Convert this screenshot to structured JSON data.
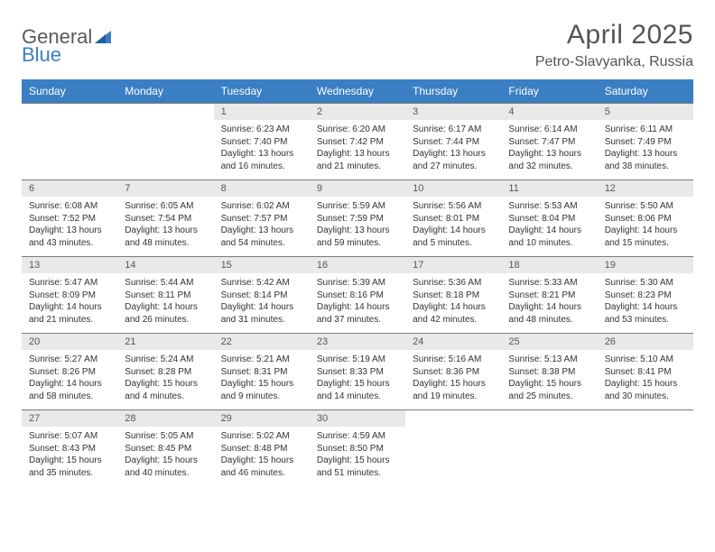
{
  "logo": {
    "general": "General",
    "blue": "Blue"
  },
  "title": "April 2025",
  "location": "Petro-Slavyanka, Russia",
  "colors": {
    "header_bg": "#3a7fc4",
    "header_fg": "#ffffff",
    "daynum_bg": "#e9e9e9",
    "rule": "#7a7a7a",
    "text": "#333333",
    "muted": "#555555"
  },
  "columns": [
    "Sunday",
    "Monday",
    "Tuesday",
    "Wednesday",
    "Thursday",
    "Friday",
    "Saturday"
  ],
  "weeks": [
    [
      null,
      null,
      {
        "n": "1",
        "sr": "6:23 AM",
        "ss": "7:40 PM",
        "dl": "13 hours and 16 minutes."
      },
      {
        "n": "2",
        "sr": "6:20 AM",
        "ss": "7:42 PM",
        "dl": "13 hours and 21 minutes."
      },
      {
        "n": "3",
        "sr": "6:17 AM",
        "ss": "7:44 PM",
        "dl": "13 hours and 27 minutes."
      },
      {
        "n": "4",
        "sr": "6:14 AM",
        "ss": "7:47 PM",
        "dl": "13 hours and 32 minutes."
      },
      {
        "n": "5",
        "sr": "6:11 AM",
        "ss": "7:49 PM",
        "dl": "13 hours and 38 minutes."
      }
    ],
    [
      {
        "n": "6",
        "sr": "6:08 AM",
        "ss": "7:52 PM",
        "dl": "13 hours and 43 minutes."
      },
      {
        "n": "7",
        "sr": "6:05 AM",
        "ss": "7:54 PM",
        "dl": "13 hours and 48 minutes."
      },
      {
        "n": "8",
        "sr": "6:02 AM",
        "ss": "7:57 PM",
        "dl": "13 hours and 54 minutes."
      },
      {
        "n": "9",
        "sr": "5:59 AM",
        "ss": "7:59 PM",
        "dl": "13 hours and 59 minutes."
      },
      {
        "n": "10",
        "sr": "5:56 AM",
        "ss": "8:01 PM",
        "dl": "14 hours and 5 minutes."
      },
      {
        "n": "11",
        "sr": "5:53 AM",
        "ss": "8:04 PM",
        "dl": "14 hours and 10 minutes."
      },
      {
        "n": "12",
        "sr": "5:50 AM",
        "ss": "8:06 PM",
        "dl": "14 hours and 15 minutes."
      }
    ],
    [
      {
        "n": "13",
        "sr": "5:47 AM",
        "ss": "8:09 PM",
        "dl": "14 hours and 21 minutes."
      },
      {
        "n": "14",
        "sr": "5:44 AM",
        "ss": "8:11 PM",
        "dl": "14 hours and 26 minutes."
      },
      {
        "n": "15",
        "sr": "5:42 AM",
        "ss": "8:14 PM",
        "dl": "14 hours and 31 minutes."
      },
      {
        "n": "16",
        "sr": "5:39 AM",
        "ss": "8:16 PM",
        "dl": "14 hours and 37 minutes."
      },
      {
        "n": "17",
        "sr": "5:36 AM",
        "ss": "8:18 PM",
        "dl": "14 hours and 42 minutes."
      },
      {
        "n": "18",
        "sr": "5:33 AM",
        "ss": "8:21 PM",
        "dl": "14 hours and 48 minutes."
      },
      {
        "n": "19",
        "sr": "5:30 AM",
        "ss": "8:23 PM",
        "dl": "14 hours and 53 minutes."
      }
    ],
    [
      {
        "n": "20",
        "sr": "5:27 AM",
        "ss": "8:26 PM",
        "dl": "14 hours and 58 minutes."
      },
      {
        "n": "21",
        "sr": "5:24 AM",
        "ss": "8:28 PM",
        "dl": "15 hours and 4 minutes."
      },
      {
        "n": "22",
        "sr": "5:21 AM",
        "ss": "8:31 PM",
        "dl": "15 hours and 9 minutes."
      },
      {
        "n": "23",
        "sr": "5:19 AM",
        "ss": "8:33 PM",
        "dl": "15 hours and 14 minutes."
      },
      {
        "n": "24",
        "sr": "5:16 AM",
        "ss": "8:36 PM",
        "dl": "15 hours and 19 minutes."
      },
      {
        "n": "25",
        "sr": "5:13 AM",
        "ss": "8:38 PM",
        "dl": "15 hours and 25 minutes."
      },
      {
        "n": "26",
        "sr": "5:10 AM",
        "ss": "8:41 PM",
        "dl": "15 hours and 30 minutes."
      }
    ],
    [
      {
        "n": "27",
        "sr": "5:07 AM",
        "ss": "8:43 PM",
        "dl": "15 hours and 35 minutes."
      },
      {
        "n": "28",
        "sr": "5:05 AM",
        "ss": "8:45 PM",
        "dl": "15 hours and 40 minutes."
      },
      {
        "n": "29",
        "sr": "5:02 AM",
        "ss": "8:48 PM",
        "dl": "15 hours and 46 minutes."
      },
      {
        "n": "30",
        "sr": "4:59 AM",
        "ss": "8:50 PM",
        "dl": "15 hours and 51 minutes."
      },
      null,
      null,
      null
    ]
  ],
  "labels": {
    "sunrise": "Sunrise: ",
    "sunset": "Sunset: ",
    "daylight": "Daylight: "
  }
}
